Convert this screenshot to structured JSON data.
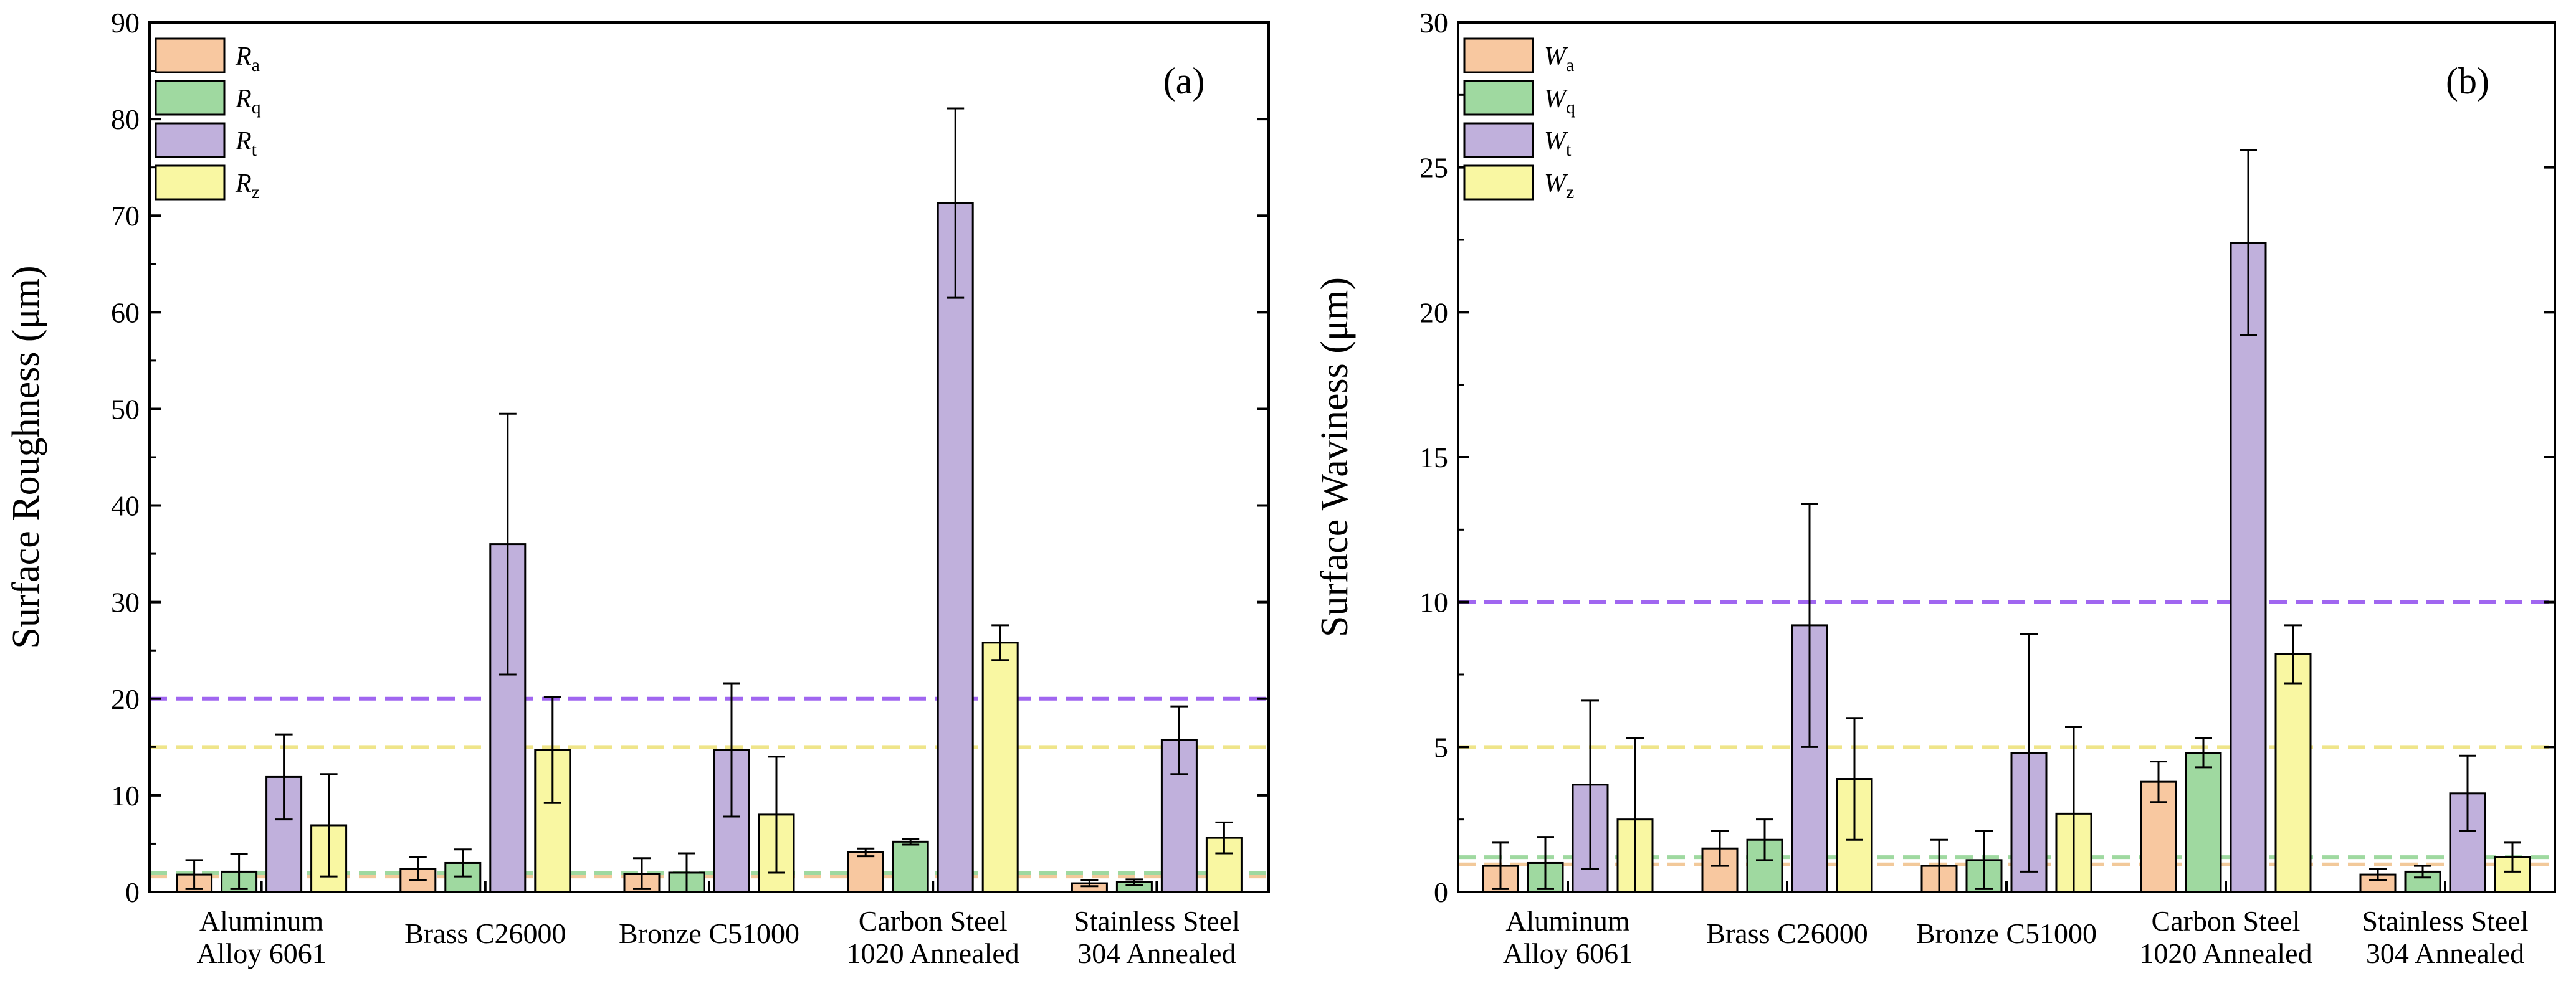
{
  "chart_data": [
    {
      "type": "bar",
      "panel_label": "(a)",
      "ylabel": "Surface Roughness (μm)",
      "ylim": [
        0,
        90
      ],
      "yticks": [
        0,
        10,
        20,
        30,
        40,
        50,
        60,
        70,
        80,
        90
      ],
      "categories": [
        [
          "Aluminum",
          "Alloy 6061"
        ],
        [
          "Brass C26000"
        ],
        [
          "Bronze C51000"
        ],
        [
          "Carbon Steel",
          "1020 Annealed"
        ],
        [
          "Stainless Steel",
          "304 Annealed"
        ]
      ],
      "series": [
        {
          "symbol": "R",
          "sub": "a",
          "color": "#f8c8a0",
          "values": [
            1.8,
            2.4,
            1.9,
            4.1,
            0.9
          ],
          "errors": [
            1.5,
            1.2,
            1.6,
            0.4,
            0.3
          ]
        },
        {
          "symbol": "R",
          "sub": "q",
          "color": "#9fd9a0",
          "values": [
            2.1,
            3.0,
            2.0,
            5.2,
            1.0
          ],
          "errors": [
            1.8,
            1.4,
            2.0,
            0.3,
            0.3
          ]
        },
        {
          "symbol": "R",
          "sub": "t",
          "color": "#c0b0dc",
          "values": [
            11.9,
            36.0,
            14.7,
            71.3,
            15.7
          ],
          "errors": [
            4.4,
            13.5,
            6.9,
            9.8,
            3.5
          ]
        },
        {
          "symbol": "R",
          "sub": "z",
          "color": "#f9f7a2",
          "values": [
            6.9,
            14.7,
            8.0,
            25.8,
            5.6
          ],
          "errors": [
            5.3,
            5.5,
            6.0,
            1.8,
            1.6
          ]
        }
      ],
      "reference_lines": [
        {
          "value": 20,
          "color": "#a066f0"
        },
        {
          "value": 15,
          "color": "#efe58a"
        },
        {
          "value": 2,
          "color": "#9fd9a0"
        },
        {
          "value": 1.6,
          "color": "#f2c99a"
        }
      ]
    },
    {
      "type": "bar",
      "panel_label": "(b)",
      "ylabel": "Surface Waviness (μm)",
      "ylim": [
        0,
        30
      ],
      "yticks": [
        0,
        5,
        10,
        15,
        20,
        25,
        30
      ],
      "categories": [
        [
          "Aluminum",
          "Alloy 6061"
        ],
        [
          "Brass C26000"
        ],
        [
          "Bronze C51000"
        ],
        [
          "Carbon Steel",
          "1020 Annealed"
        ],
        [
          "Stainless Steel",
          "304 Annealed"
        ]
      ],
      "series": [
        {
          "symbol": "W",
          "sub": "a",
          "color": "#f8c8a0",
          "values": [
            0.9,
            1.5,
            0.9,
            3.8,
            0.6
          ],
          "errors": [
            0.8,
            0.6,
            0.9,
            0.7,
            0.2
          ]
        },
        {
          "symbol": "W",
          "sub": "q",
          "color": "#9fd9a0",
          "values": [
            1.0,
            1.8,
            1.1,
            4.8,
            0.7
          ],
          "errors": [
            0.9,
            0.7,
            1.0,
            0.5,
            0.2
          ]
        },
        {
          "symbol": "W",
          "sub": "t",
          "color": "#c0b0dc",
          "values": [
            3.7,
            9.2,
            4.8,
            22.4,
            3.4
          ],
          "errors": [
            2.9,
            4.2,
            4.1,
            3.2,
            1.3
          ]
        },
        {
          "symbol": "W",
          "sub": "z",
          "color": "#f9f7a2",
          "values": [
            2.5,
            3.9,
            2.7,
            8.2,
            1.2
          ],
          "errors": [
            2.8,
            2.1,
            3.0,
            1.0,
            0.5
          ]
        }
      ],
      "reference_lines": [
        {
          "value": 10,
          "color": "#a066f0"
        },
        {
          "value": 5,
          "color": "#efe58a"
        },
        {
          "value": 1.2,
          "color": "#9fd9a0"
        },
        {
          "value": 0.95,
          "color": "#f2c99a"
        }
      ]
    }
  ]
}
